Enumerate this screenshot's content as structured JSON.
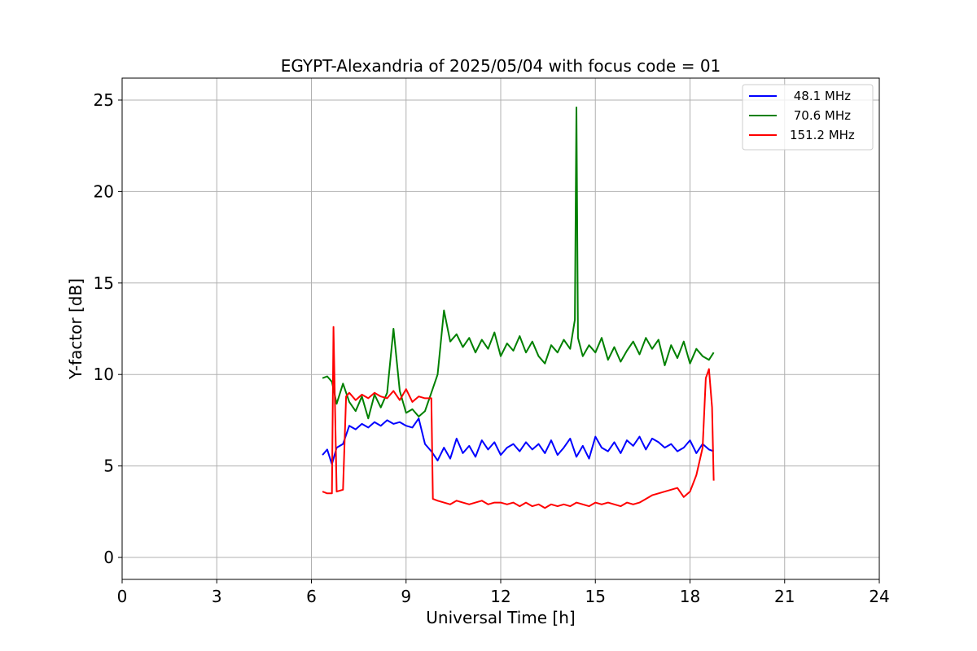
{
  "chart_data": {
    "type": "line",
    "title": "EGYPT-Alexandria of 2025/05/04 with focus code = 01",
    "xlabel": "Universal Time [h]",
    "ylabel": "Y-factor [dB]",
    "xlim": [
      0,
      24
    ],
    "ylim": [
      -1.2,
      26.2
    ],
    "xticks": [
      0,
      3,
      6,
      9,
      12,
      15,
      18,
      21,
      24
    ],
    "xtick_labels": [
      "0",
      "3",
      "6",
      "9",
      "12",
      "15",
      "18",
      "21",
      "24"
    ],
    "yticks": [
      0,
      5,
      10,
      15,
      20,
      25
    ],
    "ytick_labels": [
      "0",
      "5",
      "10",
      "15",
      "20",
      "25"
    ],
    "grid": true,
    "legend_position": "top-right",
    "series": [
      {
        "name": "48.1 MHz",
        "legend_label": " 48.1 MHz",
        "color": "#0000ff",
        "x": [
          6.35,
          6.5,
          6.65,
          6.8,
          7.0,
          7.2,
          7.4,
          7.6,
          7.8,
          8.0,
          8.2,
          8.4,
          8.6,
          8.8,
          9.0,
          9.2,
          9.4,
          9.6,
          9.8,
          10.0,
          10.2,
          10.4,
          10.6,
          10.8,
          11.0,
          11.2,
          11.4,
          11.6,
          11.8,
          12.0,
          12.2,
          12.4,
          12.6,
          12.8,
          13.0,
          13.2,
          13.4,
          13.6,
          13.8,
          14.0,
          14.2,
          14.4,
          14.6,
          14.8,
          15.0,
          15.2,
          15.4,
          15.6,
          15.8,
          16.0,
          16.2,
          16.4,
          16.6,
          16.8,
          17.0,
          17.2,
          17.4,
          17.6,
          17.8,
          18.0,
          18.2,
          18.4,
          18.6,
          18.75
        ],
        "y": [
          5.6,
          5.9,
          5.1,
          6.0,
          6.2,
          7.2,
          7.0,
          7.3,
          7.1,
          7.4,
          7.2,
          7.5,
          7.3,
          7.4,
          7.2,
          7.1,
          7.6,
          6.2,
          5.8,
          5.3,
          6.0,
          5.4,
          6.5,
          5.7,
          6.1,
          5.5,
          6.4,
          5.9,
          6.3,
          5.6,
          6.0,
          6.2,
          5.8,
          6.3,
          5.9,
          6.2,
          5.7,
          6.4,
          5.6,
          6.0,
          6.5,
          5.5,
          6.1,
          5.4,
          6.6,
          6.0,
          5.8,
          6.3,
          5.7,
          6.4,
          6.1,
          6.6,
          5.9,
          6.5,
          6.3,
          6.0,
          6.2,
          5.8,
          6.0,
          6.4,
          5.7,
          6.2,
          5.9,
          5.8
        ]
      },
      {
        "name": "70.6 MHz",
        "legend_label": " 70.6 MHz",
        "color": "#008000",
        "x": [
          6.35,
          6.5,
          6.65,
          6.8,
          7.0,
          7.2,
          7.4,
          7.6,
          7.8,
          8.0,
          8.2,
          8.4,
          8.6,
          8.8,
          9.0,
          9.2,
          9.4,
          9.6,
          9.8,
          10.0,
          10.2,
          10.4,
          10.6,
          10.8,
          11.0,
          11.2,
          11.4,
          11.6,
          11.8,
          12.0,
          12.2,
          12.4,
          12.6,
          12.8,
          13.0,
          13.2,
          13.4,
          13.6,
          13.8,
          14.0,
          14.2,
          14.35,
          14.4,
          14.45,
          14.6,
          14.8,
          15.0,
          15.2,
          15.4,
          15.6,
          15.8,
          16.0,
          16.2,
          16.4,
          16.6,
          16.8,
          17.0,
          17.2,
          17.4,
          17.6,
          17.8,
          18.0,
          18.2,
          18.4,
          18.6,
          18.75
        ],
        "y": [
          9.8,
          9.9,
          9.6,
          8.4,
          9.5,
          8.5,
          8.0,
          8.8,
          7.6,
          8.9,
          8.2,
          9.0,
          12.5,
          9.1,
          7.9,
          8.1,
          7.7,
          8.0,
          9.0,
          10.0,
          13.5,
          11.8,
          12.2,
          11.5,
          12.0,
          11.2,
          11.9,
          11.4,
          12.3,
          11.0,
          11.7,
          11.3,
          12.1,
          11.2,
          11.8,
          11.0,
          10.6,
          11.6,
          11.2,
          11.9,
          11.4,
          13.0,
          24.6,
          12.0,
          11.0,
          11.6,
          11.2,
          12.0,
          10.8,
          11.5,
          10.7,
          11.3,
          11.8,
          11.1,
          12.0,
          11.4,
          11.9,
          10.5,
          11.6,
          10.9,
          11.8,
          10.6,
          11.4,
          11.0,
          10.8,
          11.2
        ]
      },
      {
        "name": "151.2 MHz",
        "legend_label": "151.2 MHz",
        "color": "#ff0000",
        "x": [
          6.35,
          6.5,
          6.65,
          6.7,
          6.8,
          7.0,
          7.1,
          7.2,
          7.4,
          7.6,
          7.8,
          8.0,
          8.2,
          8.4,
          8.6,
          8.8,
          9.0,
          9.2,
          9.4,
          9.6,
          9.8,
          9.85,
          10.0,
          10.2,
          10.4,
          10.6,
          10.8,
          11.0,
          11.2,
          11.4,
          11.6,
          11.8,
          12.0,
          12.2,
          12.4,
          12.6,
          12.8,
          13.0,
          13.2,
          13.4,
          13.6,
          13.8,
          14.0,
          14.2,
          14.4,
          14.6,
          14.8,
          15.0,
          15.2,
          15.4,
          15.6,
          15.8,
          16.0,
          16.2,
          16.4,
          16.6,
          16.8,
          17.0,
          17.2,
          17.4,
          17.6,
          17.8,
          18.0,
          18.2,
          18.4,
          18.5,
          18.6,
          18.7,
          18.75
        ],
        "y": [
          3.6,
          3.5,
          3.5,
          12.6,
          3.6,
          3.7,
          8.8,
          9.0,
          8.6,
          8.9,
          8.7,
          9.0,
          8.8,
          8.7,
          9.1,
          8.6,
          9.2,
          8.5,
          8.8,
          8.7,
          8.7,
          3.2,
          3.1,
          3.0,
          2.9,
          3.1,
          3.0,
          2.9,
          3.0,
          3.1,
          2.9,
          3.0,
          3.0,
          2.9,
          3.0,
          2.8,
          3.0,
          2.8,
          2.9,
          2.7,
          2.9,
          2.8,
          2.9,
          2.8,
          3.0,
          2.9,
          2.8,
          3.0,
          2.9,
          3.0,
          2.9,
          2.8,
          3.0,
          2.9,
          3.0,
          3.2,
          3.4,
          3.5,
          3.6,
          3.7,
          3.8,
          3.3,
          3.6,
          4.5,
          6.0,
          9.8,
          10.3,
          8.2,
          4.2
        ]
      }
    ]
  }
}
